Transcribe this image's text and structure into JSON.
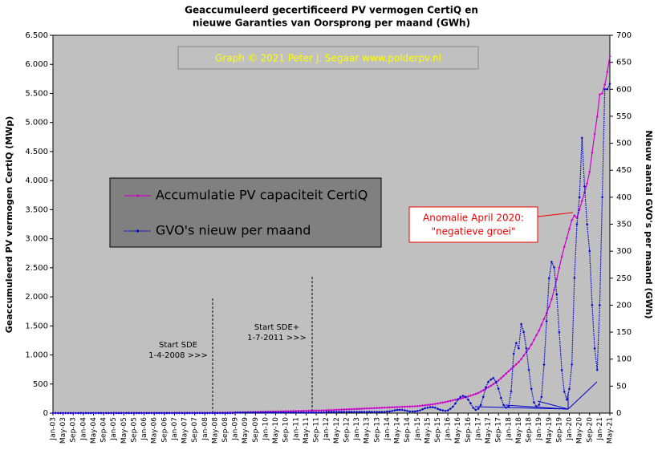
{
  "chart_data": {
    "type": "line",
    "title": [
      "Geaccumuleerd  gecertificeerd  PV vermogen  CertiQ  en",
      "nieuwe  Garanties  van Oorsprong  per maand  (GWh)"
    ],
    "credit": "Graph  © 2021  Peter  J. Segaar   www.polderpv.nl",
    "ylabel": "Geaccumuleerd PV vermogen CertiQ (MWp)",
    "y2label": "Nieuw aantal GVO's per maand (GWh)",
    "annotations": {
      "sde": [
        "Start SDE",
        "1-4-2008   >>>"
      ],
      "sdeplus": [
        "Start SDE+",
        "1-7-2011   >>>"
      ],
      "anomaly": [
        "Anomalie  April 2020:",
        "\"negatieve groei\""
      ]
    },
    "categories": [
      "Jan-03",
      null,
      null,
      null,
      "May-03",
      null,
      null,
      null,
      "Sep-03",
      null,
      null,
      null,
      "Jan-04",
      null,
      null,
      null,
      "May-04",
      null,
      null,
      null,
      "Sep-04",
      null,
      null,
      null,
      "Jan-05",
      null,
      null,
      null,
      "May-05",
      null,
      null,
      null,
      "Sep-05",
      null,
      null,
      null,
      "Jan-06",
      null,
      null,
      null,
      "May-06",
      null,
      null,
      null,
      "Sep-06",
      null,
      null,
      null,
      "Jan-07",
      null,
      null,
      null,
      "May-07",
      null,
      null,
      null,
      "Sep-07",
      null,
      null,
      null,
      "Jan-08",
      null,
      null,
      null,
      "May-08",
      null,
      null,
      null,
      "Sep-08",
      null,
      null,
      null,
      "Jan-09",
      null,
      null,
      null,
      "May-09",
      null,
      null,
      null,
      "Sep-09",
      null,
      null,
      null,
      "Jan-10",
      null,
      null,
      null,
      "May-10",
      null,
      null,
      null,
      "Sep-10",
      null,
      null,
      null,
      "Jan-11",
      null,
      null,
      null,
      "May-11",
      null,
      null,
      null,
      "Sep-11",
      null,
      null,
      null,
      "Jan-12",
      null,
      null,
      null,
      "May-12",
      null,
      null,
      null,
      "Sep-12",
      null,
      null,
      null,
      "Jan-13",
      null,
      null,
      null,
      "May-13",
      null,
      null,
      null,
      "Sep-13",
      null,
      null,
      null,
      "Jan-14",
      null,
      null,
      null,
      "May-14",
      null,
      null,
      null,
      "Sep-14",
      null,
      null,
      null,
      "Jan-15",
      null,
      null,
      null,
      "May-15",
      null,
      null,
      null,
      "Sep-15",
      null,
      null,
      null,
      "Jan-16",
      null,
      null,
      null,
      "May-16",
      null,
      null,
      null,
      "Sep-16",
      null,
      null,
      null,
      "Jan-17",
      null,
      null,
      null,
      "May-17",
      null,
      null,
      null,
      "Sep-17",
      null,
      null,
      null,
      "Jan-18",
      null,
      null,
      null,
      "May-18",
      null,
      null,
      null,
      "Sep-18",
      null,
      null,
      null,
      "Jan-19",
      null,
      null,
      null,
      "May-19",
      null,
      null,
      null,
      "Sep-19",
      null,
      null,
      null,
      "Jan-20",
      null,
      null,
      null,
      "May-20",
      null,
      null,
      null,
      "Sep-20",
      null,
      null,
      null,
      "Jan-21",
      null,
      null,
      null,
      "May-21"
    ],
    "series": [
      {
        "name": "Accumulatie PV capaciteit CertiQ",
        "color": "#cc00cc",
        "axis": "y",
        "values": [
          1,
          1,
          1,
          1,
          1,
          1,
          1,
          1,
          1,
          1,
          1,
          1,
          2,
          2,
          2,
          2,
          2,
          2,
          2,
          2,
          2,
          2,
          2,
          2,
          3,
          3,
          3,
          3,
          3,
          3,
          3,
          3,
          3,
          3,
          3,
          3,
          4,
          4,
          4,
          4,
          4,
          4,
          4,
          4,
          4,
          4,
          4,
          4,
          5,
          5,
          5,
          5,
          5,
          5,
          5,
          5,
          5,
          5,
          5,
          5,
          6,
          6,
          6,
          6,
          7,
          7,
          8,
          8,
          9,
          9,
          10,
          10,
          11,
          12,
          13,
          14,
          15,
          16,
          17,
          18,
          19,
          20,
          21,
          22,
          23,
          24,
          25,
          26,
          27,
          28,
          29,
          30,
          31,
          32,
          33,
          34,
          35,
          36,
          37,
          38,
          39,
          40,
          41,
          42,
          43,
          44,
          45,
          46,
          48,
          50,
          52,
          54,
          56,
          58,
          60,
          62,
          64,
          66,
          68,
          70,
          72,
          74,
          76,
          78,
          80,
          82,
          84,
          86,
          88,
          90,
          92,
          94,
          96,
          98,
          100,
          102,
          104,
          106,
          108,
          110,
          112,
          114,
          116,
          118,
          120,
          125,
          130,
          135,
          140,
          145,
          150,
          158,
          166,
          174,
          182,
          190,
          200,
          210,
          220,
          230,
          240,
          250,
          262,
          274,
          286,
          300,
          315,
          330,
          345,
          370,
          395,
          420,
          445,
          470,
          500,
          530,
          560,
          600,
          640,
          680,
          720,
          760,
          800,
          840,
          880,
          930,
          990,
          1050,
          1110,
          1180,
          1260,
          1340,
          1420,
          1520,
          1620,
          1720,
          1830,
          1960,
          2120,
          2300,
          2500,
          2690,
          2860,
          3010,
          3170,
          3320,
          3400,
          3360,
          3500,
          3650,
          3800,
          3950,
          4150,
          4480,
          4800,
          5100,
          5480,
          5500,
          5650,
          5870,
          6140
        ]
      },
      {
        "name": "GVO's nieuw per maand",
        "color": "#0000cc",
        "axis": "y2",
        "values": [
          0,
          0,
          0,
          0,
          0,
          0,
          0,
          0,
          0,
          0,
          0,
          0,
          0,
          0,
          0,
          0,
          0,
          0,
          0,
          0,
          0,
          0,
          0,
          0,
          0,
          0,
          0,
          0,
          0,
          0,
          0,
          0,
          0,
          0,
          0,
          0,
          0,
          0,
          0,
          0,
          0,
          0,
          0,
          0,
          0,
          0,
          0,
          0,
          0,
          0,
          0,
          0,
          0,
          0,
          0,
          0,
          0,
          0,
          0,
          0,
          0,
          0,
          0,
          0,
          0,
          0,
          0,
          0,
          0,
          0,
          0,
          0,
          1,
          1,
          1,
          1,
          1,
          1,
          1,
          1,
          1,
          1,
          1,
          1,
          1,
          1,
          1,
          1,
          1,
          1,
          1,
          1,
          1,
          1,
          1,
          1,
          1,
          1,
          1,
          1,
          1,
          1,
          1,
          1,
          1,
          1,
          1,
          1,
          2,
          2,
          2,
          2,
          2,
          2,
          2,
          2,
          2,
          2,
          2,
          2,
          2,
          2,
          2,
          2,
          2,
          2,
          2,
          2,
          2,
          2,
          2,
          2,
          3,
          3,
          4,
          5,
          6,
          6,
          6,
          5,
          4,
          3,
          3,
          3,
          4,
          5,
          7,
          9,
          10,
          11,
          11,
          10,
          8,
          6,
          5,
          4,
          5,
          8,
          12,
          18,
          25,
          30,
          32,
          30,
          25,
          18,
          10,
          6,
          8,
          15,
          30,
          48,
          58,
          62,
          65,
          58,
          45,
          28,
          15,
          10,
          12,
          40,
          110,
          130,
          120,
          165,
          150,
          120,
          80,
          45,
          20,
          12,
          15,
          30,
          90,
          170,
          250,
          280,
          270,
          220,
          150,
          80,
          40,
          25,
          45,
          90,
          250,
          350,
          400,
          510,
          420,
          350,
          300,
          200,
          120,
          80,
          200,
          400,
          600,
          600,
          610
        ]
      }
    ],
    "ylim": [
      0,
      6500
    ],
    "yticks": [
      0,
      500,
      {
        "value": 1000,
        "label": "1.000"
      },
      {
        "value": 1500,
        "label": "1.500"
      },
      {
        "value": 2000,
        "label": "2.000"
      },
      {
        "value": 2500,
        "label": "2.500"
      },
      {
        "value": 3000,
        "label": "3.000"
      },
      {
        "value": 3500,
        "label": "3.500"
      },
      {
        "value": 4000,
        "label": "4.000"
      },
      {
        "value": 4500,
        "label": "4.500"
      },
      {
        "value": 5000,
        "label": "5.000"
      },
      {
        "value": 5500,
        "label": "5.500"
      },
      {
        "value": 6000,
        "label": "6.000"
      },
      {
        "value": 6500,
        "label": "6.500"
      }
    ],
    "y2lim": [
      0,
      700
    ],
    "y2ticks": [
      0,
      50,
      100,
      150,
      200,
      250,
      300,
      350,
      400,
      450,
      500,
      550,
      600,
      650,
      700
    ],
    "grid": false
  }
}
